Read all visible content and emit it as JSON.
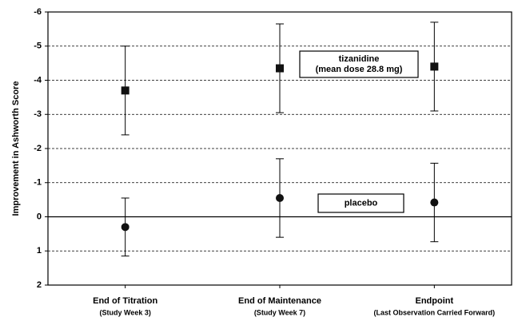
{
  "chart_data": {
    "type": "errorbar",
    "y_label": "Improvement in Ashworth Score",
    "categories": [
      "End of Titration",
      "End of Maintenance",
      "Endpoint"
    ],
    "category_sublabels": [
      "(Study Week 3)",
      "(Study Week 7)",
      "(Last Observation Carried Forward)"
    ],
    "ylim": [
      -6,
      2
    ],
    "y_inverted": true,
    "yticks": [
      -6,
      -5,
      -4,
      -3,
      -2,
      -1,
      0,
      1,
      2
    ],
    "grid": true,
    "series": [
      {
        "name": "tizanidine",
        "name_note": "(mean dose 28.8 mg)",
        "marker": "square",
        "color": "#111111",
        "values": [
          -3.7,
          -4.35,
          -4.4
        ],
        "errors": [
          1.3,
          1.3,
          1.3
        ]
      },
      {
        "name": "placebo",
        "marker": "circle",
        "color": "#111111",
        "values": [
          0.3,
          -0.55,
          -0.42
        ],
        "errors": [
          0.85,
          1.15,
          1.15
        ]
      }
    ]
  }
}
